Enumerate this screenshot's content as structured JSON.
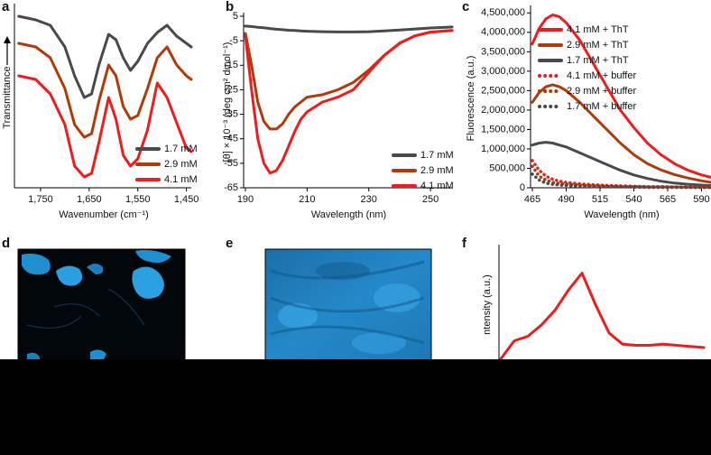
{
  "panel_labels": [
    "a",
    "b",
    "c",
    "d",
    "e",
    "f"
  ],
  "chart_data": [
    {
      "type": "line",
      "xlabel": "Wavenumber (cm⁻¹)",
      "ylabel": "Transmittance",
      "xlim": [
        1800,
        1440
      ],
      "ylim": [
        0,
        100
      ],
      "xticks": [
        {
          "value": 1750,
          "label": "1,750"
        },
        {
          "value": 1650,
          "label": "1,650"
        },
        {
          "value": 1550,
          "label": "1,550"
        },
        {
          "value": 1450,
          "label": "1,450"
        }
      ],
      "x": [
        1795,
        1760,
        1730,
        1700,
        1680,
        1660,
        1645,
        1630,
        1610,
        1595,
        1580,
        1565,
        1550,
        1530,
        1510,
        1490,
        1470,
        1450,
        1440
      ],
      "legend": "lower right",
      "series": [
        {
          "name": "1.7 mM",
          "color": "#4a4a4a",
          "values": [
            95,
            93,
            90,
            78,
            62,
            50,
            52,
            68,
            85,
            82,
            72,
            65,
            70,
            80,
            86,
            90,
            84,
            80,
            78
          ]
        },
        {
          "name": "2.9 mM",
          "color": "#b03a0a",
          "values": [
            80,
            78,
            72,
            55,
            35,
            28,
            30,
            48,
            68,
            62,
            45,
            38,
            40,
            55,
            72,
            78,
            68,
            62,
            60
          ]
        },
        {
          "name": "4.1 mM",
          "color": "#ee1c1c",
          "values": [
            62,
            60,
            52,
            35,
            12,
            6,
            8,
            25,
            50,
            38,
            18,
            12,
            16,
            32,
            58,
            50,
            36,
            22,
            20
          ]
        }
      ]
    },
    {
      "type": "line",
      "xlabel": "Wavelength (nm)",
      "ylabel": "[θ] × 10⁻³ (deg cm² dmol⁻¹)",
      "xlim": [
        190,
        257
      ],
      "ylim": [
        -65,
        5
      ],
      "xticks": [
        190,
        210,
        230,
        250
      ],
      "yticks": [
        5,
        -5,
        -15,
        -25,
        -35,
        -45,
        -55,
        -65
      ],
      "x": [
        190,
        192,
        194,
        196,
        198,
        200,
        202,
        204,
        206,
        208,
        210,
        215,
        220,
        225,
        230,
        235,
        240,
        245,
        250,
        255,
        257
      ],
      "legend": "lower right",
      "series": [
        {
          "name": "1.7 mM",
          "color": "#4a4a4a",
          "values": [
            1,
            0.8,
            0.5,
            0.3,
            0,
            -0.3,
            -0.5,
            -0.7,
            -0.8,
            -1,
            -1.1,
            -1.3,
            -1.4,
            -1.4,
            -1.3,
            -1,
            -0.6,
            -0.2,
            0.2,
            0.5,
            0.6
          ]
        },
        {
          "name": "2.9 mM",
          "color": "#b03a0a",
          "values": [
            -2,
            -15,
            -30,
            -38,
            -41,
            -41,
            -39,
            -35,
            -32,
            -30,
            -28,
            -27,
            -25,
            -22,
            -17,
            -11,
            -6,
            -3,
            -1.5,
            -1,
            -0.8
          ]
        },
        {
          "name": "4.1 mM",
          "color": "#ee1c1c",
          "values": [
            -3,
            -25,
            -45,
            -55,
            -59,
            -58,
            -54,
            -48,
            -42,
            -37,
            -34,
            -30,
            -28,
            -25,
            -18,
            -11,
            -6,
            -3,
            -1.5,
            -1,
            -0.8
          ]
        }
      ]
    },
    {
      "type": "line",
      "xlabel": "Wavelength (nm)",
      "ylabel": "Fluorescence (a.u.)",
      "xlim": [
        465,
        597
      ],
      "ylim": [
        0,
        4600000
      ],
      "xticks": [
        465,
        490,
        515,
        540,
        565,
        590
      ],
      "yticks": [
        0,
        {
          "value": 500000,
          "label": "500,000"
        },
        {
          "value": 1000000,
          "label": "1,000,000"
        },
        {
          "value": 1500000,
          "label": "1,500,000"
        },
        {
          "value": 2000000,
          "label": "2,000,000"
        },
        {
          "value": 2500000,
          "label": "2,500,000"
        },
        {
          "value": 3000000,
          "label": "3,000,000"
        },
        {
          "value": 3500000,
          "label": "3,500,000"
        },
        {
          "value": 4000000,
          "label": "4,000,000"
        },
        {
          "value": 4500000,
          "label": "4,500,000"
        }
      ],
      "x": [
        465,
        470,
        475,
        480,
        485,
        490,
        500,
        510,
        520,
        530,
        540,
        550,
        560,
        570,
        580,
        590,
        597
      ],
      "legend": "upper right",
      "series": [
        {
          "name": "4.1 mM + ThT",
          "color": "#ee1c1c",
          "style": "solid",
          "values": [
            3700000,
            4100000,
            4350000,
            4450000,
            4400000,
            4250000,
            3800000,
            3200000,
            2600000,
            2000000,
            1550000,
            1150000,
            850000,
            620000,
            450000,
            330000,
            270000
          ]
        },
        {
          "name": "2.9 mM + ThT",
          "color": "#b03a0a",
          "style": "solid",
          "values": [
            2200000,
            2450000,
            2600000,
            2650000,
            2600000,
            2500000,
            2200000,
            1850000,
            1500000,
            1150000,
            850000,
            620000,
            460000,
            340000,
            250000,
            180000,
            140000
          ]
        },
        {
          "name": "1.7 mM + ThT",
          "color": "#4a4a4a",
          "style": "solid",
          "values": [
            1100000,
            1150000,
            1170000,
            1150000,
            1100000,
            1050000,
            900000,
            750000,
            600000,
            450000,
            330000,
            240000,
            170000,
            120000,
            90000,
            70000,
            55000
          ]
        },
        {
          "name": "4.1 mM + buffer",
          "color": "#ee1c1c",
          "style": "dotted",
          "values": [
            700000,
            450000,
            300000,
            220000,
            170000,
            140000,
            100000,
            80000,
            60000,
            50000,
            40000,
            30000,
            30000,
            20000,
            20000,
            20000,
            20000
          ]
        },
        {
          "name": "2.9 mM + buffer",
          "color": "#b03a0a",
          "style": "dotted",
          "values": [
            550000,
            300000,
            200000,
            140000,
            110000,
            90000,
            70000,
            50000,
            40000,
            30000,
            30000,
            20000,
            20000,
            20000,
            10000,
            10000,
            10000
          ]
        },
        {
          "name": "1.7 mM + buffer",
          "color": "#4a4a4a",
          "style": "dotted",
          "values": [
            350000,
            200000,
            120000,
            90000,
            70000,
            60000,
            40000,
            30000,
            30000,
            20000,
            20000,
            10000,
            10000,
            10000,
            10000,
            10000,
            10000
          ]
        }
      ]
    },
    {
      "type": "line",
      "ylabel": "ntensity (a.u.)",
      "ylim": [
        0,
        100
      ],
      "color": "#ee1c1c",
      "values": [
        2,
        18,
        22,
        32,
        45,
        63,
        78,
        50,
        25,
        15,
        14,
        14,
        15,
        14,
        13,
        12
      ]
    }
  ]
}
